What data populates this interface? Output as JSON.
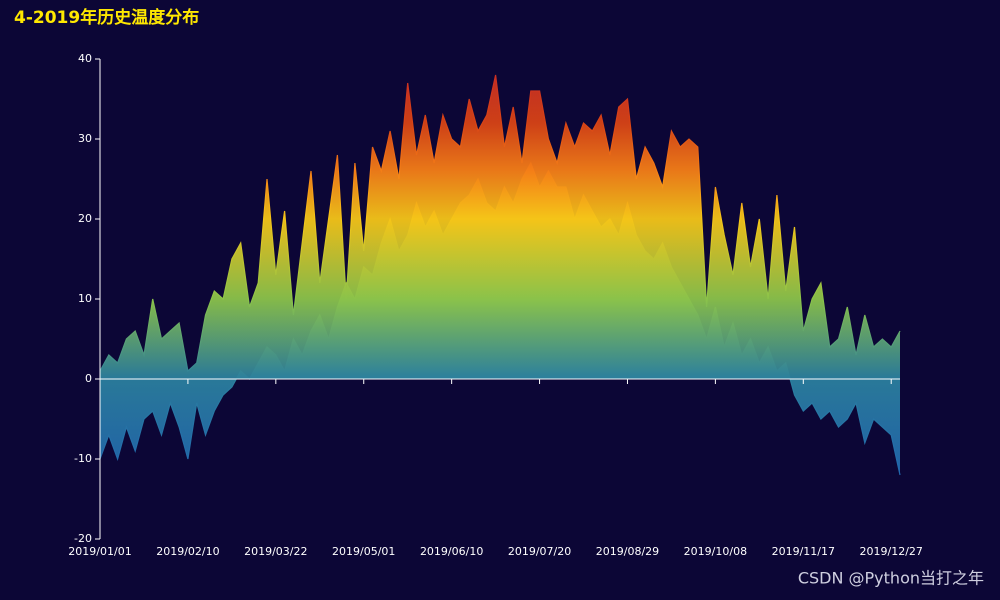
{
  "chart_data": {
    "type": "area",
    "title": "4-2019年历史温度分布",
    "watermark": "CSDN @Python当打之年",
    "categories": [
      "2019/01/01",
      null,
      null,
      null,
      null,
      null,
      null,
      null,
      null,
      null,
      "2019/02/10",
      null,
      null,
      null,
      null,
      null,
      null,
      null,
      null,
      null,
      "2019/03/22",
      null,
      null,
      null,
      null,
      null,
      null,
      null,
      null,
      null,
      "2019/05/01",
      null,
      null,
      null,
      null,
      null,
      null,
      null,
      null,
      null,
      "2019/06/10",
      null,
      null,
      null,
      null,
      null,
      null,
      null,
      null,
      null,
      "2019/07/20",
      null,
      null,
      null,
      null,
      null,
      null,
      null,
      null,
      null,
      "2019/08/29",
      null,
      null,
      null,
      null,
      null,
      null,
      null,
      null,
      null,
      "2019/10/08",
      null,
      null,
      null,
      null,
      null,
      null,
      null,
      null,
      null,
      "2019/11/17",
      null,
      null,
      null,
      null,
      null,
      null,
      null,
      null,
      null,
      "2019/12/27",
      null
    ],
    "series": [
      {
        "values": [
          1,
          3,
          2,
          5,
          6,
          3,
          10,
          5,
          6,
          7,
          1,
          2,
          8,
          11,
          10,
          15,
          17,
          9,
          12,
          25,
          13,
          21,
          8,
          17,
          26,
          12,
          20,
          28,
          10,
          27,
          16,
          29,
          26,
          31,
          25,
          37,
          28,
          33,
          27,
          33,
          30,
          29,
          35,
          31,
          33,
          38,
          29,
          34,
          27,
          36,
          36,
          30,
          27,
          32,
          29,
          32,
          31,
          33,
          28,
          34,
          35,
          25,
          29,
          27,
          24,
          31,
          29,
          30,
          29,
          9,
          24,
          18,
          13,
          22,
          14,
          20,
          10,
          23,
          11,
          19,
          6,
          10,
          12,
          4,
          5,
          9,
          3,
          8,
          4,
          5,
          4,
          6
        ]
      },
      {
        "values": [
          -10,
          -7,
          -10,
          -6,
          -9,
          -5,
          -4,
          -7,
          -3,
          -6,
          -10,
          -3,
          -7,
          -4,
          -2,
          -1,
          1,
          0,
          2,
          4,
          3,
          1,
          5,
          3,
          6,
          8,
          5,
          9,
          12,
          10,
          14,
          13,
          17,
          20,
          16,
          18,
          22,
          19,
          21,
          18,
          20,
          22,
          23,
          25,
          22,
          21,
          24,
          22,
          25,
          27,
          24,
          26,
          24,
          24,
          20,
          23,
          21,
          19,
          20,
          18,
          22,
          18,
          16,
          15,
          17,
          14,
          12,
          10,
          8,
          5,
          9,
          4,
          7,
          3,
          5,
          2,
          4,
          1,
          2,
          -2,
          -4,
          -3,
          -5,
          -4,
          -6,
          -5,
          -3,
          -8,
          -5,
          -6,
          -7,
          -12
        ]
      }
    ],
    "ylim": [
      -20,
      40
    ],
    "yticks": [
      -20,
      -10,
      0,
      10,
      20,
      30,
      40
    ],
    "color_stops": [
      {
        "value": -20,
        "color": "#1a56b8"
      },
      {
        "value": 0,
        "color": "#2b7f9e"
      },
      {
        "value": 10,
        "color": "#8bc34a"
      },
      {
        "value": 20,
        "color": "#f5c518"
      },
      {
        "value": 26,
        "color": "#f57f17"
      },
      {
        "value": 32,
        "color": "#d84315"
      },
      {
        "value": 40,
        "color": "#c62828"
      }
    ]
  }
}
